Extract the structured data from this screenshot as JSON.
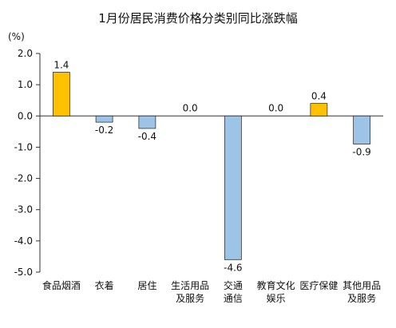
{
  "chart_data": {
    "type": "bar",
    "title": "1月份居民消费价格分类别同比涨跌幅",
    "y_unit": "(%)",
    "categories": [
      [
        "食品烟酒"
      ],
      [
        "衣着"
      ],
      [
        "居住"
      ],
      [
        "生活用品",
        "及服务"
      ],
      [
        "交通",
        "通信"
      ],
      [
        "教育文化",
        "娱乐"
      ],
      [
        "医疗保健"
      ],
      [
        "其他用品",
        "及服务"
      ]
    ],
    "values": [
      1.4,
      -0.2,
      -0.4,
      0.0,
      -4.6,
      0.0,
      0.4,
      -0.9
    ],
    "data_labels": [
      "1.4",
      "-0.2",
      "-0.4",
      "0.0",
      "-4.6",
      "0.0",
      "0.4",
      "-0.9"
    ],
    "ylim": [
      -5.0,
      2.0
    ],
    "y_ticks": [
      2.0,
      1.0,
      0.0,
      -1.0,
      -2.0,
      -3.0,
      -4.0,
      -5.0
    ],
    "y_tick_labels": [
      "2.0",
      "1.0",
      "0.0",
      "-1.0",
      "-2.0",
      "-3.0",
      "-4.0",
      "-5.0"
    ],
    "grid": false,
    "colors": {
      "positive": "#FFC000",
      "negative": "#9DC3E6",
      "bar_edge": "#333333",
      "axis": "#333333",
      "text": "#111111"
    }
  }
}
